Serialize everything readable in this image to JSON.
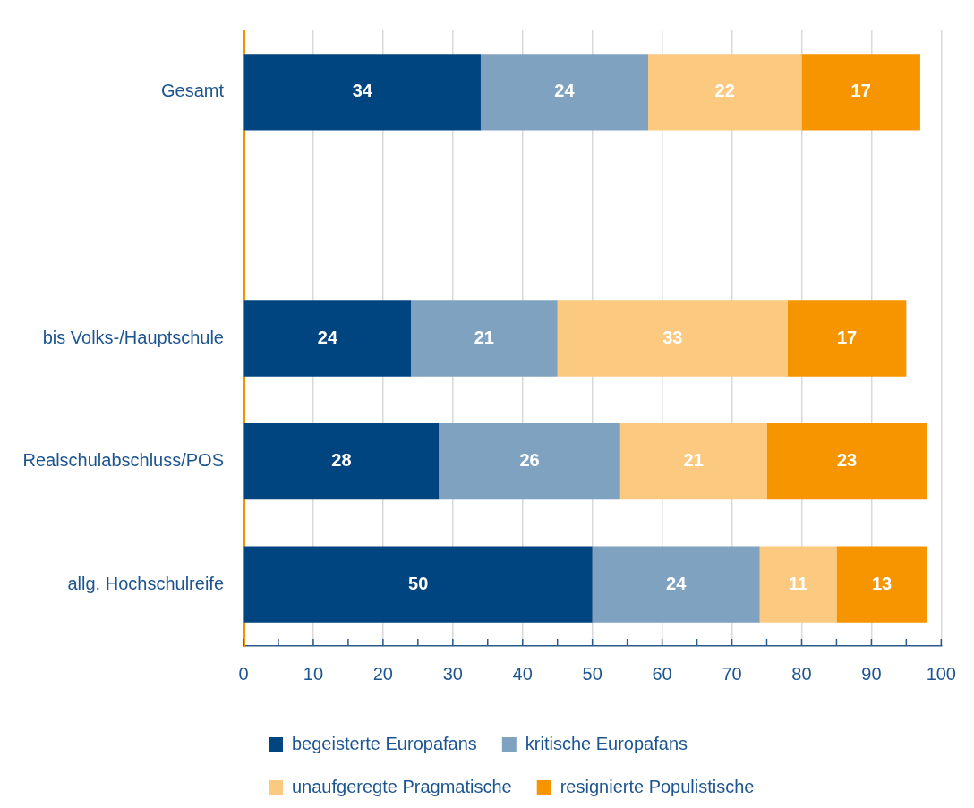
{
  "chart_data": {
    "type": "bar",
    "orientation": "horizontal",
    "stacked": true,
    "categories": [
      "Gesamt",
      null,
      "bis Volks-/Hauptschule",
      "Realschulabschluss/POS",
      "allg. Hochschulreife"
    ],
    "series": [
      {
        "name": "begeisterte Europafans",
        "color": "#004480",
        "values": [
          34,
          null,
          24,
          28,
          50
        ]
      },
      {
        "name": "kritische Europafans",
        "color": "#7fa2c1",
        "values": [
          24,
          null,
          21,
          26,
          24
        ]
      },
      {
        "name": "unaufgeregte Pragmatische",
        "color": "#fbc980",
        "values": [
          22,
          null,
          33,
          21,
          11
        ]
      },
      {
        "name": "resignierte Populistische",
        "color": "#f79500",
        "values": [
          17,
          null,
          17,
          23,
          13
        ]
      }
    ],
    "xlim": [
      0,
      100
    ],
    "xticks": [
      0,
      {
        "value": 5,
        "label": null
      },
      10,
      {
        "value": 15,
        "label": null
      },
      20,
      {
        "value": 25,
        "label": null
      },
      30,
      {
        "value": 35,
        "label": null
      },
      40,
      {
        "value": 45,
        "label": null
      },
      50,
      {
        "value": 55,
        "label": null
      },
      60,
      {
        "value": 65,
        "label": null
      },
      70,
      {
        "value": 75,
        "label": null
      },
      80,
      {
        "value": 85,
        "label": null
      },
      90,
      {
        "value": 95,
        "label": null
      },
      100
    ],
    "grid": "x",
    "legend": "bottom",
    "data_labels": true
  }
}
